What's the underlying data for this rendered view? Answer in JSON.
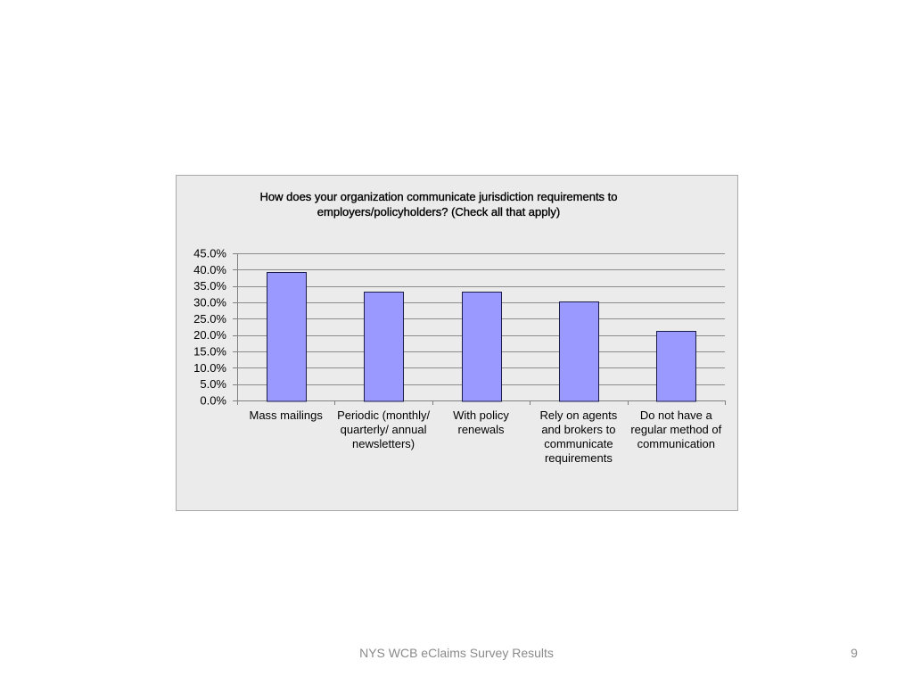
{
  "slide": {
    "footer": "NYS WCB eClaims Survey Results",
    "page_number": "9"
  },
  "chart_data": {
    "type": "bar",
    "title": "How does your organization communicate jurisdiction requirements to employers/policyholders? (Check all that apply)",
    "categories": [
      "Mass mailings",
      "Periodic (monthly/ quarterly/ annual newsletters)",
      "With policy renewals",
      "Rely on agents and brokers to communicate requirements",
      "Do not have a regular method of communication"
    ],
    "values": [
      39.4,
      33.3,
      33.3,
      30.3,
      21.2
    ],
    "ylim": [
      0,
      45
    ],
    "ytick_labels": [
      "0.0%",
      "5.0%",
      "10.0%",
      "15.0%",
      "20.0%",
      "25.0%",
      "30.0%",
      "35.0%",
      "40.0%",
      "45.0%"
    ],
    "grid": true,
    "legend": "none",
    "colors": {
      "bar_fill": "#9999ff",
      "bar_edge": "#1c1c48",
      "plot_background": "#ebebeb",
      "gridline": "#8c8c8c"
    }
  }
}
